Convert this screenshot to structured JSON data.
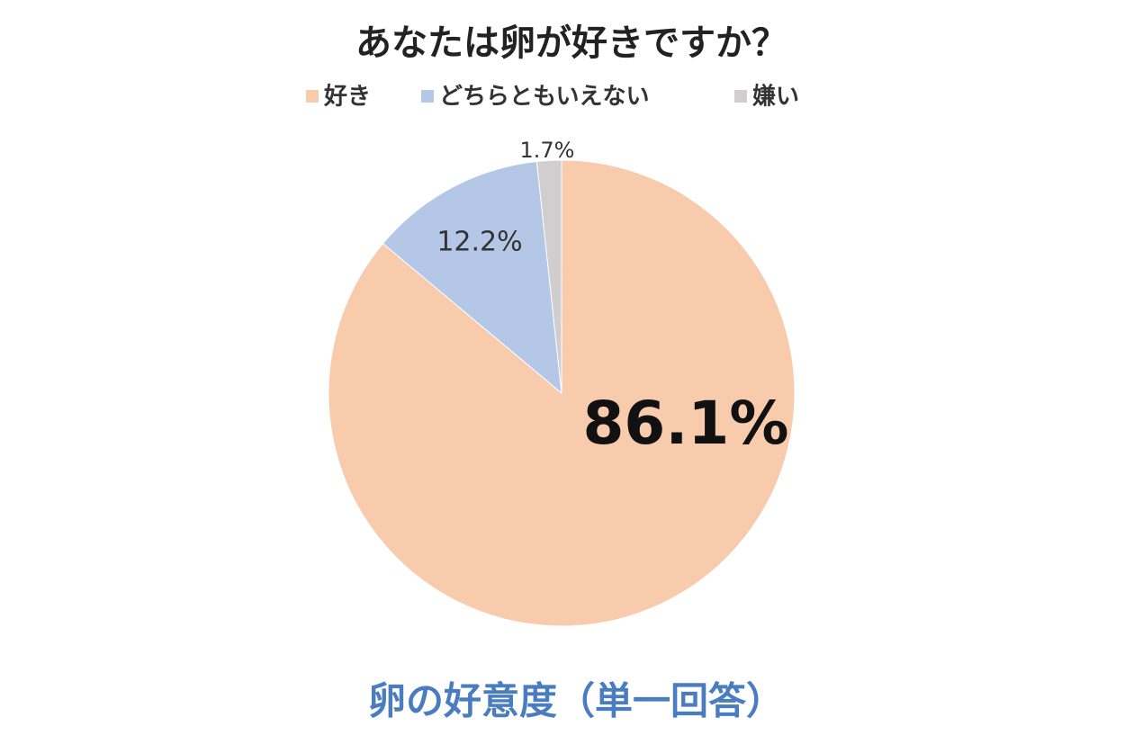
{
  "chart_data": {
    "type": "pie",
    "title": "あなたは卵が好きですか？",
    "categories": [
      "好き",
      "どちらともいえない",
      "嫌い"
    ],
    "values": [
      86.1,
      12.2,
      1.7
    ],
    "value_labels": [
      "86.1%",
      "12.2%",
      "1.7%"
    ],
    "colors": [
      "#f8cbad",
      "#b4c7e7",
      "#d0cece"
    ],
    "legend": "top",
    "caption": "卵の好意度（単一回答）"
  }
}
